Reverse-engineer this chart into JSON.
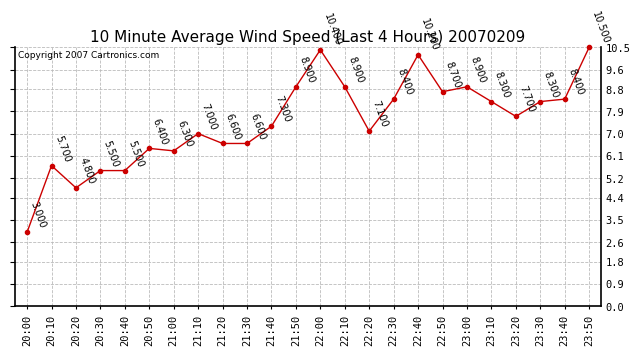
{
  "title": "10 Minute Average Wind Speed (Last 4 Hours) 20070209",
  "copyright": "Copyright 2007 Cartronics.com",
  "x_labels": [
    "20:00",
    "20:10",
    "20:20",
    "20:30",
    "20:40",
    "20:50",
    "21:00",
    "21:10",
    "21:20",
    "21:30",
    "21:40",
    "21:50",
    "22:00",
    "22:10",
    "22:20",
    "22:30",
    "22:40",
    "22:50",
    "23:00",
    "23:10",
    "23:20",
    "23:30",
    "23:40",
    "23:50"
  ],
  "y_values": [
    3.0,
    5.7,
    4.8,
    5.5,
    5.5,
    6.4,
    6.3,
    7.0,
    6.6,
    6.6,
    7.3,
    8.9,
    10.4,
    8.9,
    7.1,
    8.4,
    10.2,
    8.7,
    8.9,
    8.3,
    7.7,
    8.3,
    8.4,
    10.5
  ],
  "data_labels": [
    "3.000",
    "5.700",
    "4.800",
    "5.500",
    "5.500",
    "6.400",
    "6.300",
    "7.000",
    "6.600",
    "6.600",
    "7.300",
    "8.900",
    "10.400",
    "8.900",
    "7.100",
    "8.400",
    "10.200",
    "8.700",
    "8.900",
    "8.300",
    "7.700",
    "8.300",
    "8.400",
    "10.500"
  ],
  "line_color": "#cc0000",
  "marker_color": "#cc0000",
  "bg_color": "#ffffff",
  "grid_color": "#bbbbbb",
  "ylim": [
    0.0,
    10.5
  ],
  "yticks": [
    0.0,
    0.9,
    1.8,
    2.6,
    3.5,
    4.4,
    5.2,
    6.1,
    7.0,
    7.9,
    8.8,
    9.6,
    10.5
  ],
  "ytick_labels": [
    "0.0",
    "0.9",
    "1.8",
    "2.6",
    "3.5",
    "4.4",
    "5.2",
    "6.1",
    "7.0",
    "7.9",
    "8.8",
    "9.6",
    "10.5"
  ],
  "title_fontsize": 11,
  "label_fontsize": 7,
  "tick_fontsize": 7.5
}
